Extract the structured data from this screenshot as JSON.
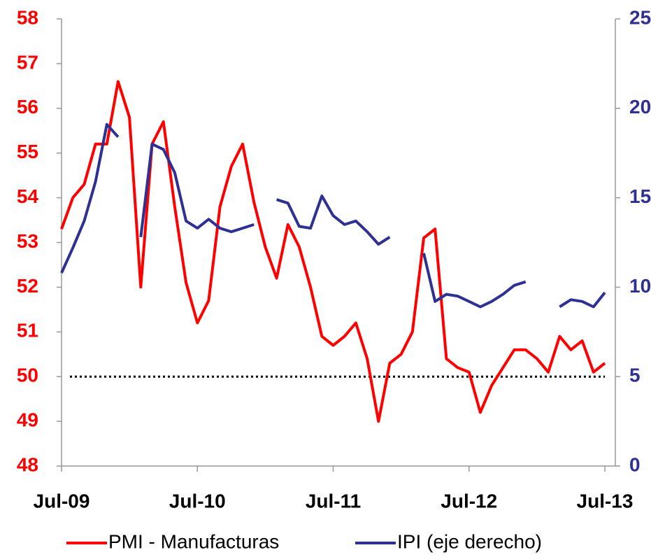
{
  "chart_data": {
    "type": "line",
    "categories": [
      "Jul-09",
      null,
      null,
      null,
      null,
      null,
      null,
      null,
      null,
      null,
      null,
      null,
      "Jul-10",
      null,
      null,
      null,
      null,
      null,
      null,
      null,
      null,
      null,
      null,
      null,
      "Jul-11",
      null,
      null,
      null,
      null,
      null,
      null,
      null,
      null,
      null,
      null,
      null,
      "Jul-12",
      null,
      null,
      null,
      null,
      null,
      null,
      null,
      null,
      null,
      null,
      null,
      "Jul-13"
    ],
    "series": [
      {
        "name": "PMI - Manufacturas",
        "color": "#ff0000",
        "axis": "y",
        "values": [
          53.3,
          54.0,
          54.3,
          55.2,
          55.2,
          56.6,
          55.8,
          52.0,
          55.2,
          55.7,
          53.8,
          52.1,
          51.2,
          51.7,
          53.8,
          54.7,
          55.2,
          53.9,
          52.9,
          52.2,
          53.4,
          52.9,
          52.0,
          50.9,
          50.7,
          50.9,
          51.2,
          50.4,
          49.0,
          50.3,
          50.5,
          51.0,
          53.1,
          53.3,
          50.4,
          50.2,
          50.1,
          49.2,
          49.8,
          50.2,
          50.6,
          50.6,
          50.4,
          50.1,
          50.9,
          50.6,
          50.8,
          50.1,
          50.3
        ]
      },
      {
        "name": "IPI (eje derecho)",
        "color": "#2e3192",
        "axis": "y2",
        "values": [
          10.8,
          12.2,
          13.7,
          15.9,
          19.1,
          18.4,
          null,
          12.8,
          18.0,
          17.7,
          16.4,
          13.7,
          13.3,
          13.8,
          13.3,
          13.1,
          13.3,
          13.5,
          null,
          14.9,
          14.7,
          13.4,
          13.3,
          15.1,
          14.0,
          13.5,
          13.7,
          13.1,
          12.4,
          12.8,
          null,
          null,
          11.9,
          9.2,
          9.6,
          9.5,
          9.2,
          8.9,
          9.2,
          9.6,
          10.1,
          10.3,
          null,
          null,
          8.9,
          9.3,
          9.2,
          8.9,
          9.7
        ]
      }
    ],
    "ylim": [
      48,
      58
    ],
    "yticks": [
      48,
      49,
      50,
      51,
      52,
      53,
      54,
      55,
      56,
      57,
      58
    ],
    "ytick_color": "#ff0000",
    "y2lim": [
      0,
      25
    ],
    "y2ticks": [
      0,
      5,
      10,
      15,
      20,
      25
    ],
    "y2tick_color": "#2e3192",
    "hline": 50,
    "grid": false,
    "legend": "bottom"
  }
}
